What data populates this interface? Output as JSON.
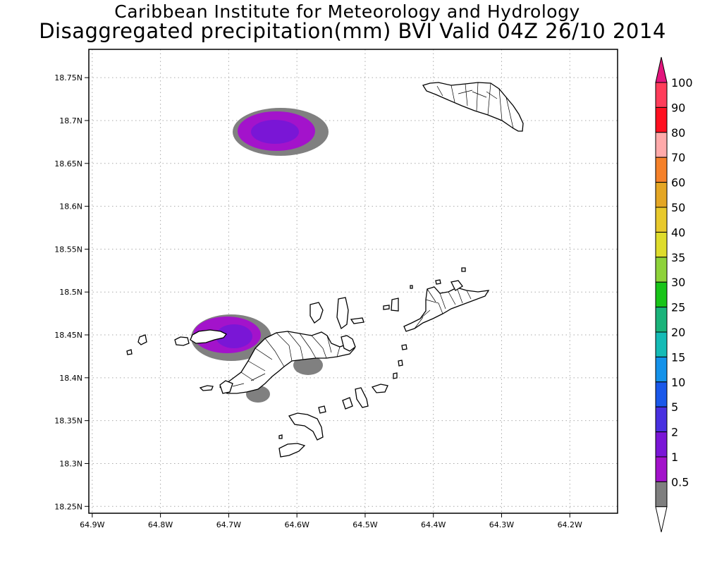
{
  "title": {
    "line1": "Caribbean Institute for Meteorology and Hydrology",
    "line2": "Disaggregated precipitation(mm) BVI Valid 04Z 26/10 2014"
  },
  "map": {
    "lon_ticks": [
      "64.9W",
      "64.8W",
      "64.7W",
      "64.6W",
      "64.5W",
      "64.4W",
      "64.3W",
      "64.2W"
    ],
    "lat_ticks": [
      "18.75N",
      "18.7N",
      "18.65N",
      "18.6N",
      "18.55N",
      "18.5N",
      "18.45N",
      "18.4N",
      "18.35N",
      "18.3N",
      "18.25N"
    ],
    "lon_values": [
      -64.9,
      -64.8,
      -64.7,
      -64.6,
      -64.5,
      -64.4,
      -64.3,
      -64.2
    ],
    "lat_values": [
      18.75,
      18.7,
      18.65,
      18.6,
      18.55,
      18.5,
      18.45,
      18.4,
      18.35,
      18.3,
      18.25
    ],
    "lon_range": [
      -64.905,
      -64.13
    ],
    "lat_range": [
      18.242,
      18.783
    ]
  },
  "precip_cells": [
    {
      "lon": -64.64,
      "lat": 18.69,
      "peak_class": "2-5 mm"
    },
    {
      "lon": -64.7,
      "lat": 18.45,
      "peak_class": "2-5 mm"
    }
  ],
  "colorbar": {
    "labels": [
      "100",
      "90",
      "80",
      "70",
      "60",
      "50",
      "40",
      "35",
      "30",
      "25",
      "20",
      "15",
      "10",
      "5",
      "2",
      "1",
      "0.5"
    ],
    "colors": [
      "#ff3d5a",
      "#ff1020",
      "#ffaaaa",
      "#f5812a",
      "#e4a624",
      "#e8c92c",
      "#dedc2c",
      "#8ed23a",
      "#18c418",
      "#1ab37a",
      "#15bbb6",
      "#1492ea",
      "#1a58ea",
      "#4830e0",
      "#7a16d6",
      "#a212ca",
      "#7f7f7f"
    ],
    "top_color": "#e3157d",
    "bottom_color": "#ffffff"
  }
}
